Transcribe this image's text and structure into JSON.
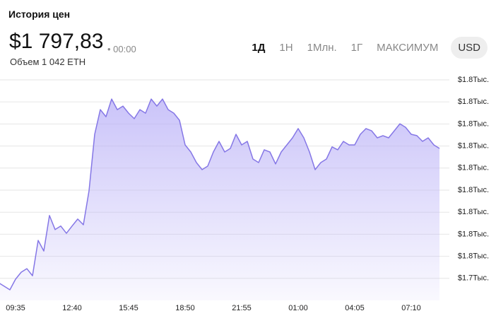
{
  "header": {
    "title": "История цен",
    "price": "$1 797,83",
    "time": "• 00:00",
    "volume": "Объем 1 042 ETH",
    "ranges": [
      "1Д",
      "1Н",
      "1Млн.",
      "1Г",
      "МАКСИМУМ"
    ],
    "currency": "USD"
  },
  "chart_data": {
    "type": "area",
    "color": "#8577e6",
    "grid": true,
    "categories": [
      null,
      null,
      null,
      "09:35",
      null,
      null,
      null,
      null,
      null,
      null,
      null,
      null,
      null,
      "12:40",
      null,
      null,
      null,
      null,
      null,
      null,
      null,
      null,
      null,
      "15:45",
      null,
      null,
      null,
      null,
      null,
      null,
      null,
      null,
      null,
      "18:50",
      null,
      null,
      null,
      null,
      null,
      null,
      null,
      null,
      null,
      "21:55",
      null,
      null,
      null,
      null,
      null,
      null,
      null,
      null,
      null,
      "01:00",
      null,
      null,
      null,
      null,
      null,
      null,
      null,
      null,
      null,
      "04:05",
      null,
      null,
      null,
      null,
      null,
      null,
      null,
      null,
      null,
      "07:10",
      null,
      null,
      null,
      null,
      null
    ],
    "values": [
      1738.0,
      1736.4,
      1734.8,
      1739.6,
      1742.8,
      1744.4,
      1741.2,
      1757.2,
      1752.4,
      1768.5,
      1762.1,
      1763.7,
      1760.4,
      1763.7,
      1766.9,
      1764.3,
      1779.7,
      1805.3,
      1816.5,
      1813.3,
      1821.3,
      1816.5,
      1818.1,
      1814.9,
      1812.4,
      1816.5,
      1814.9,
      1821.3,
      1818.1,
      1821.3,
      1816.5,
      1814.9,
      1811.7,
      1800.5,
      1797.3,
      1792.5,
      1789.3,
      1790.9,
      1797.3,
      1802.1,
      1797.3,
      1798.9,
      1805.3,
      1800.5,
      1802.1,
      1794.1,
      1792.5,
      1798.3,
      1797.3,
      1791.9,
      1797.3,
      1800.5,
      1803.7,
      1807.9,
      1803.7,
      1797.3,
      1789.3,
      1792.5,
      1794.1,
      1799.6,
      1798.3,
      1802.1,
      1800.5,
      1800.5,
      1805.3,
      1807.9,
      1806.9,
      1803.7,
      1804.7,
      1803.7,
      1806.9,
      1810.1,
      1808.5,
      1805.3,
      1804.7,
      1802.1,
      1803.7,
      1800.5,
      1798.9
    ],
    "ylim": [
      1730,
      1834
    ],
    "yticks": [
      {
        "value": 1740,
        "label": "$1.7Тыс."
      },
      {
        "value": 1750,
        "label": "$1.8Тыс."
      },
      {
        "value": 1760,
        "label": "$1.8Тыс."
      },
      {
        "value": 1770,
        "label": "$1.8Тыс."
      },
      {
        "value": 1780,
        "label": "$1.8Тыс."
      },
      {
        "value": 1790,
        "label": "$1.8Тыс."
      },
      {
        "value": 1800,
        "label": "$1.8Тыс."
      },
      {
        "value": 1810,
        "label": "$1.8Тыс."
      },
      {
        "value": 1820,
        "label": "$1.8Тыс."
      },
      {
        "value": 1830,
        "label": "$1.8Тыс."
      }
    ]
  }
}
